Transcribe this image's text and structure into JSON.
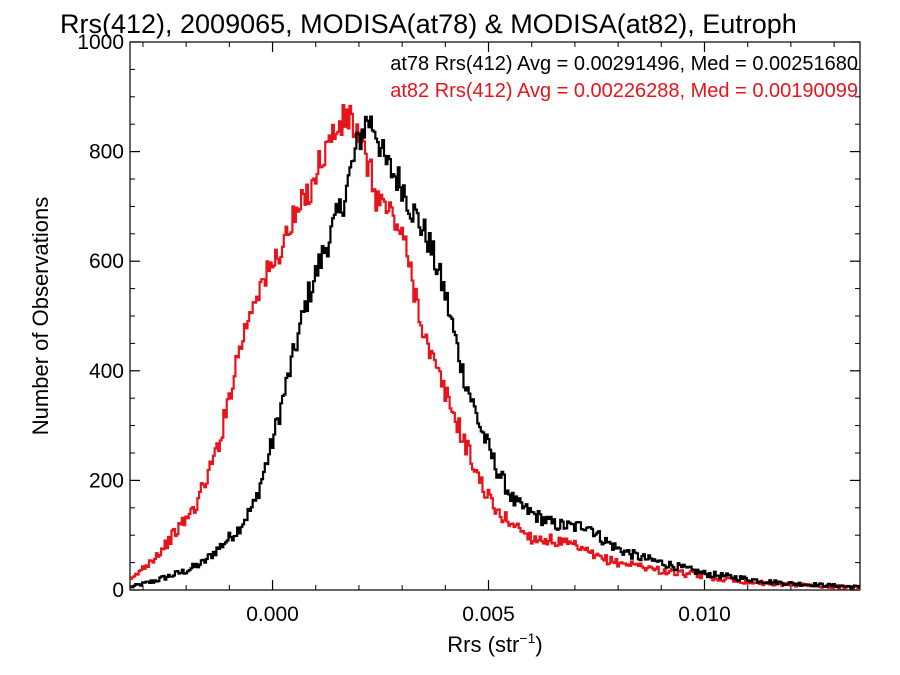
{
  "chart_data": {
    "type": "line",
    "title": "Rrs(412), 2009065, MODISA(at78) & MODISA(at82), Eutroph",
    "xlabel": "Rrs (str",
    "xlabel_superscript": "−1",
    "xlabel_suffix": ")",
    "ylabel": "Number of Observations",
    "xlim": [
      -0.0033,
      0.0136
    ],
    "ylim": [
      0,
      1000
    ],
    "xticks": [
      {
        "value": 0.0,
        "label": "0.000"
      },
      {
        "value": 0.005,
        "label": "0.005"
      },
      {
        "value": 0.01,
        "label": "0.010"
      }
    ],
    "yticks": [
      {
        "value": 0,
        "label": "0"
      },
      {
        "value": 200,
        "label": "200"
      },
      {
        "value": 400,
        "label": "400"
      },
      {
        "value": 600,
        "label": "600"
      },
      {
        "value": 800,
        "label": "800"
      },
      {
        "value": 1000,
        "label": "1000"
      }
    ],
    "legend_placement": "top-right",
    "colors": {
      "at78": "#000000",
      "at82": "#e8141c"
    },
    "series": [
      {
        "key": "at78",
        "legend": "at78 Rrs(412) Avg = 0.00291496, Med = 0.00251680",
        "x": [
          -0.0033,
          -0.0028,
          -0.0024,
          -0.002,
          -0.0016,
          -0.0012,
          -0.0008,
          -0.0004,
          0.0,
          0.0004,
          0.0008,
          0.0012,
          0.0016,
          0.0018,
          0.002,
          0.0022,
          0.0024,
          0.0026,
          0.0028,
          0.003,
          0.0032,
          0.0036,
          0.004,
          0.0044,
          0.0048,
          0.0052,
          0.0056,
          0.006,
          0.0065,
          0.007,
          0.0073,
          0.0076,
          0.008,
          0.0085,
          0.009,
          0.0095,
          0.01,
          0.0105,
          0.011,
          0.0115,
          0.012,
          0.0125,
          0.013,
          0.0136
        ],
        "y": [
          5,
          15,
          25,
          35,
          50,
          80,
          110,
          160,
          270,
          400,
          530,
          620,
          700,
          760,
          820,
          860,
          840,
          780,
          760,
          740,
          700,
          640,
          540,
          400,
          300,
          220,
          160,
          140,
          120,
          115,
          120,
          95,
          75,
          60,
          50,
          40,
          30,
          25,
          20,
          15,
          12,
          10,
          8,
          5
        ]
      },
      {
        "key": "at82",
        "legend": "at82 Rrs(412) Avg = 0.00226288, Med = 0.00190099",
        "x": [
          -0.0033,
          -0.003,
          -0.0026,
          -0.0022,
          -0.0018,
          -0.0014,
          -0.0012,
          -0.0008,
          -0.0004,
          0.0,
          0.0004,
          0.0008,
          0.0012,
          0.0014,
          0.0016,
          0.0018,
          0.002,
          0.0022,
          0.0024,
          0.0026,
          0.0028,
          0.003,
          0.0032,
          0.0036,
          0.004,
          0.0044,
          0.0048,
          0.0052,
          0.0056,
          0.006,
          0.0065,
          0.007,
          0.0075,
          0.008,
          0.0085,
          0.009,
          0.0095,
          0.01,
          0.0105,
          0.011,
          0.0115,
          0.012,
          0.0125,
          0.013,
          0.0136
        ],
        "y": [
          15,
          40,
          70,
          110,
          150,
          230,
          280,
          430,
          540,
          590,
          660,
          720,
          800,
          830,
          850,
          865,
          820,
          780,
          720,
          700,
          680,
          650,
          580,
          440,
          360,
          280,
          200,
          140,
          120,
          95,
          90,
          80,
          60,
          50,
          45,
          35,
          30,
          25,
          20,
          15,
          12,
          10,
          8,
          6,
          5
        ]
      }
    ]
  }
}
